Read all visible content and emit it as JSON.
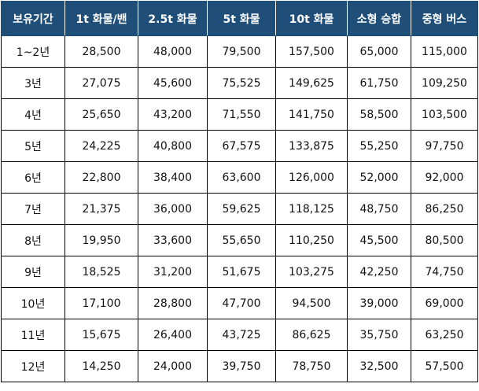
{
  "table": {
    "headers": [
      "보유기간",
      "1t 화물/밴",
      "2.5t 화물",
      "5t 화물",
      "10t 화물",
      "소형 승합",
      "중형 버스"
    ],
    "rows": [
      [
        "1~2년",
        "28,500",
        "48,000",
        "79,500",
        "157,500",
        "65,000",
        "115,000"
      ],
      [
        "3년",
        "27,075",
        "45,600",
        "75,525",
        "149,625",
        "61,750",
        "109,250"
      ],
      [
        "4년",
        "25,650",
        "43,200",
        "71,550",
        "141,750",
        "58,500",
        "103,500"
      ],
      [
        "5년",
        "24,225",
        "40,800",
        "67,575",
        "133,875",
        "55,250",
        "97,750"
      ],
      [
        "6년",
        "22,800",
        "38,400",
        "63,600",
        "126,000",
        "52,000",
        "92,000"
      ],
      [
        "7년",
        "21,375",
        "36,000",
        "59,625",
        "118,125",
        "48,750",
        "86,250"
      ],
      [
        "8년",
        "19,950",
        "33,600",
        "55,650",
        "110,250",
        "45,500",
        "80,500"
      ],
      [
        "9년",
        "18,525",
        "31,200",
        "51,675",
        "103,275",
        "42,250",
        "74,750"
      ],
      [
        "10년",
        "17,100",
        "28,800",
        "47,700",
        "94,500",
        "39,000",
        "69,000"
      ],
      [
        "11년",
        "15,675",
        "26,400",
        "43,725",
        "86,625",
        "35,750",
        "63,250"
      ],
      [
        "12년",
        "14,250",
        "24,000",
        "39,750",
        "78,750",
        "32,500",
        "57,500"
      ]
    ]
  },
  "colors": {
    "header_bg": "#1f4e79",
    "header_text": "#ffffff",
    "border": "#000000"
  }
}
